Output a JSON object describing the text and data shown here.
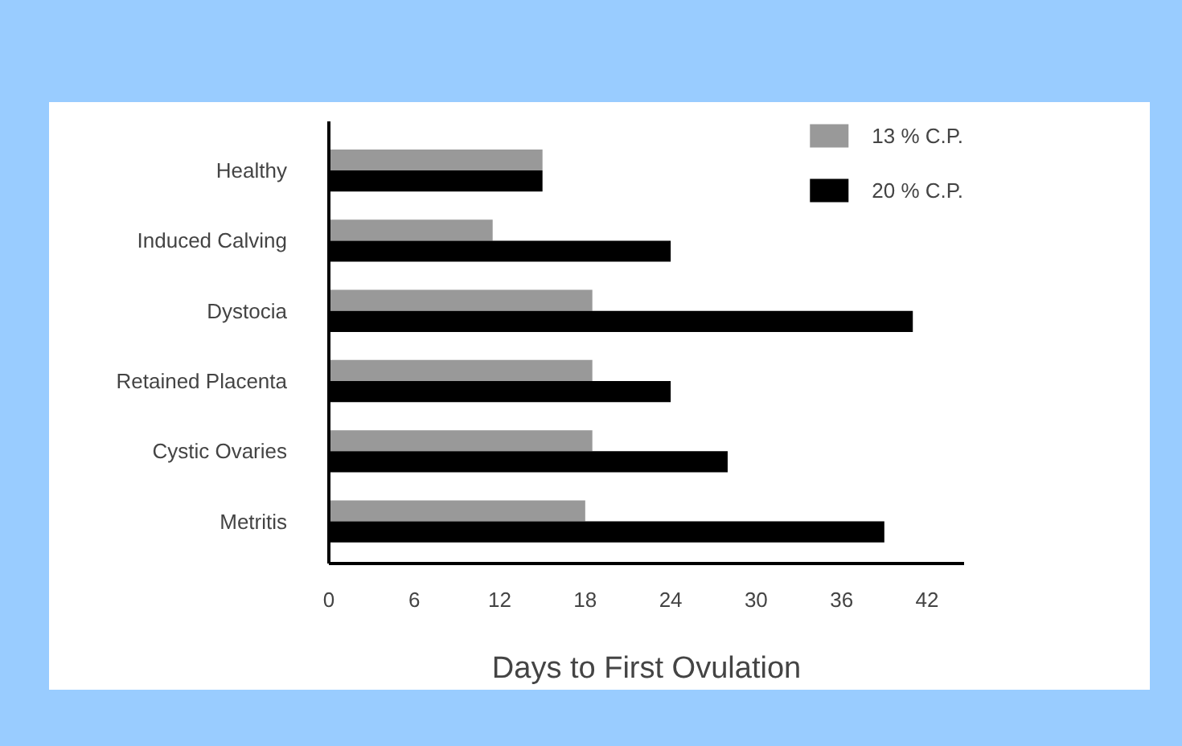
{
  "chart_data": {
    "type": "bar",
    "orientation": "horizontal",
    "xlabel": "Days to First Ovulation",
    "categories": [
      "Healthy",
      "Induced Calving",
      "Dystocia",
      "Retained Placenta",
      "Cystic Ovaries",
      "Metritis"
    ],
    "series": [
      {
        "name": "13 % C.P.",
        "color": "#999999",
        "values": [
          15,
          11.5,
          18.5,
          18.5,
          18.5,
          18
        ]
      },
      {
        "name": "20 % C.P.",
        "color": "#000000",
        "values": [
          15,
          24,
          41,
          24,
          28,
          39
        ]
      }
    ],
    "xlim": [
      0,
      44.6
    ],
    "xticks": [
      0,
      6,
      12,
      18,
      24,
      30,
      36,
      42
    ],
    "grid": false,
    "legend": "top right"
  }
}
